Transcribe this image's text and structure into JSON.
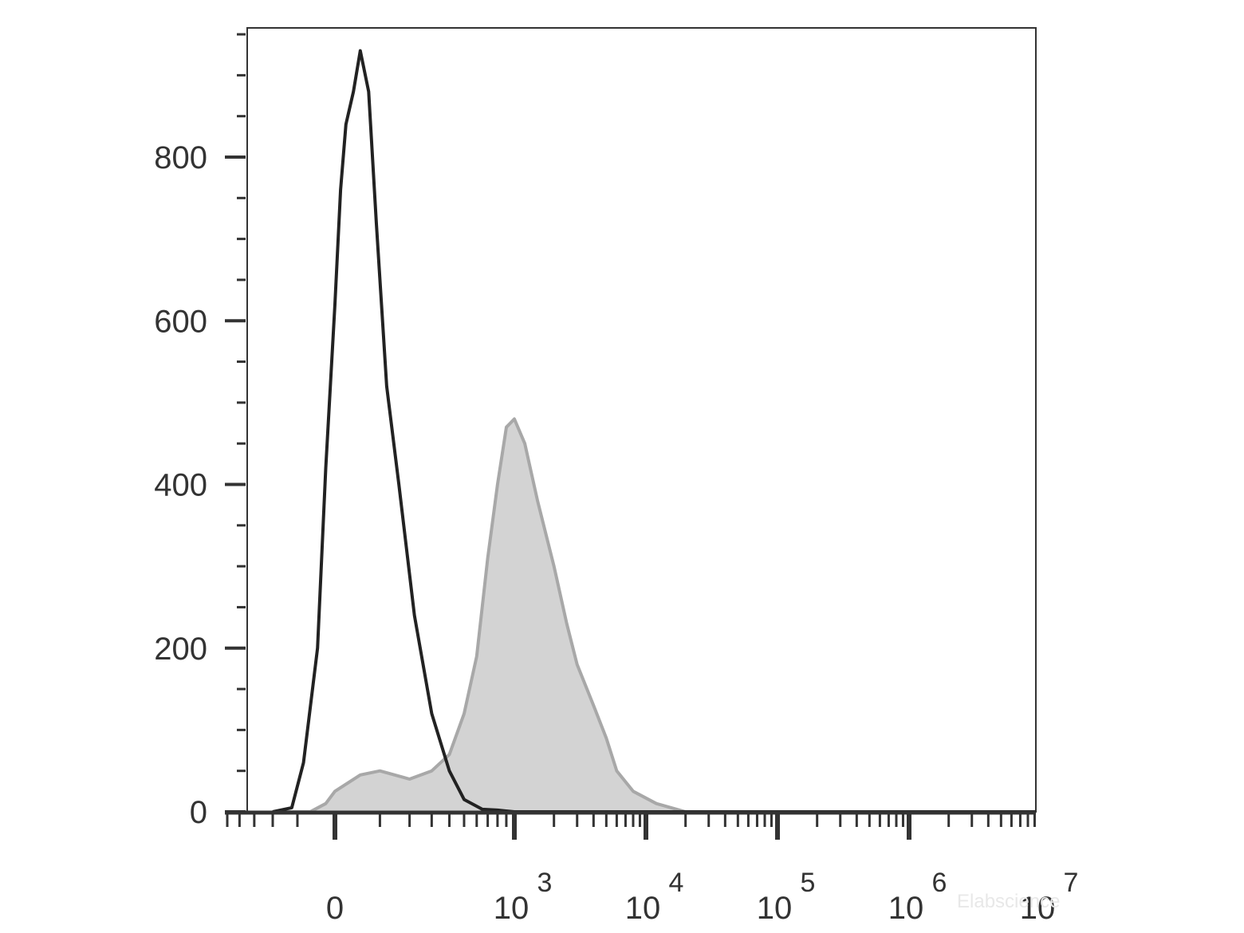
{
  "chart_data": {
    "type": "area",
    "title": "",
    "xlabel": "",
    "ylabel": "",
    "x_scale": "biexponential",
    "ylim": [
      0,
      950
    ],
    "y_ticks": [
      0,
      200,
      400,
      600,
      800
    ],
    "y_tick_labels": [
      "0",
      "200",
      "400",
      "600",
      "800"
    ],
    "x_tick_labels": [
      {
        "value": 0,
        "base": "0",
        "exp": ""
      },
      {
        "value": 1000,
        "base": "10",
        "exp": "3"
      },
      {
        "value": 10000,
        "base": "10",
        "exp": "4"
      },
      {
        "value": 100000,
        "base": "10",
        "exp": "5"
      },
      {
        "value": 1000000,
        "base": "10",
        "exp": "6"
      },
      {
        "value": 10000000,
        "base": "10",
        "exp": "7"
      }
    ],
    "series": [
      {
        "style": "outline",
        "color": "#222222",
        "x": [
          -200,
          -120,
          -80,
          -40,
          -20,
          0,
          10,
          20,
          35,
          50,
          70,
          90,
          120,
          160,
          220,
          300,
          400,
          500,
          650,
          800,
          1000,
          1500,
          3000,
          10000,
          100000,
          1000000,
          10000000
        ],
        "y": [
          0,
          5,
          60,
          200,
          420,
          620,
          760,
          840,
          880,
          930,
          880,
          720,
          520,
          400,
          240,
          120,
          50,
          15,
          3,
          2,
          0,
          0,
          0,
          0,
          0,
          0,
          0
        ]
      },
      {
        "style": "filled",
        "color": "#a8a8a8",
        "fill": "#d3d3d3",
        "x": [
          -200,
          -60,
          -20,
          0,
          50,
          100,
          200,
          300,
          400,
          500,
          600,
          700,
          800,
          900,
          1000,
          1200,
          1500,
          2000,
          2500,
          3000,
          4000,
          5000,
          6000,
          8000,
          12000,
          20000,
          30000,
          100000,
          1000000,
          10000000
        ],
        "y": [
          0,
          0,
          10,
          25,
          45,
          50,
          40,
          50,
          70,
          120,
          190,
          310,
          400,
          470,
          480,
          450,
          380,
          300,
          230,
          180,
          130,
          90,
          50,
          25,
          10,
          0,
          0,
          0,
          0,
          0
        ]
      }
    ]
  },
  "watermark": "Elabscience"
}
